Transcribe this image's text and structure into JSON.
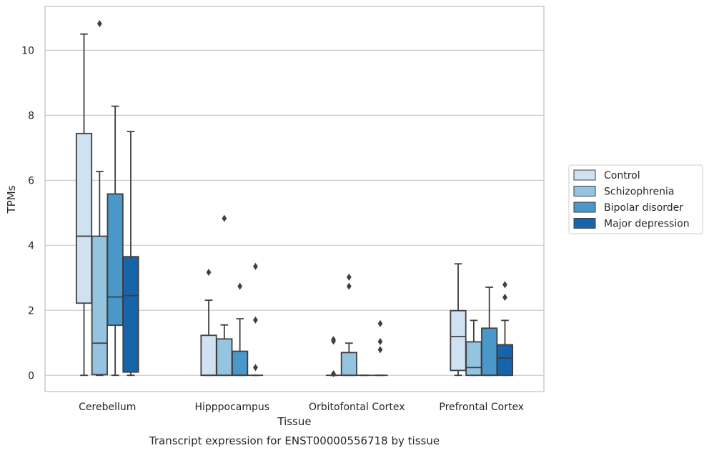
{
  "caption": "Transcript expression for ENST00000556718 by tissue",
  "chart_data": {
    "type": "box",
    "xlabel": "Tissue",
    "ylabel": "TPMs",
    "ylim": [
      -0.5,
      11.35
    ],
    "yticks": [
      0,
      2,
      4,
      6,
      8,
      10
    ],
    "grid": "horizontal",
    "legend_position": "right",
    "categories": [
      "Cerebellum",
      "Hipppocampus",
      "Orbitofontal Cortex",
      "Prefrontal Cortex"
    ],
    "series": [
      {
        "name": "Control",
        "color": "#d0e1f2",
        "boxes": [
          {
            "whislo": 0,
            "q1": 2.22,
            "med": 4.28,
            "q3": 7.44,
            "whishi": 10.5,
            "fliers": []
          },
          {
            "whislo": 0,
            "q1": 0,
            "med": 0,
            "q3": 1.23,
            "whishi": 2.31,
            "fliers": [
              3.17
            ]
          },
          {
            "whislo": 0,
            "q1": 0,
            "med": 0,
            "q3": 0,
            "whishi": 0,
            "fliers": [
              0.05,
              1.05,
              1.1
            ]
          },
          {
            "whislo": 0,
            "q1": 0.15,
            "med": 1.19,
            "q3": 1.99,
            "whishi": 3.43,
            "fliers": []
          }
        ]
      },
      {
        "name": "Schizophrenia",
        "color": "#94c4df",
        "boxes": [
          {
            "whislo": 0,
            "q1": 0.02,
            "med": 0.99,
            "q3": 4.28,
            "whishi": 6.27,
            "fliers": [
              10.82
            ]
          },
          {
            "whislo": 0,
            "q1": 0,
            "med": 0,
            "q3": 1.12,
            "whishi": 1.55,
            "fliers": [
              4.83
            ]
          },
          {
            "whislo": 0,
            "q1": 0,
            "med": 0,
            "q3": 0.7,
            "whishi": 0.99,
            "fliers": [
              2.74,
              3.02
            ]
          },
          {
            "whislo": 0,
            "q1": 0,
            "med": 0.24,
            "q3": 1.03,
            "whishi": 1.69,
            "fliers": []
          }
        ]
      },
      {
        "name": "Bipolar disorder",
        "color": "#4a98c9",
        "boxes": [
          {
            "whislo": 0,
            "q1": 1.54,
            "med": 2.41,
            "q3": 5.58,
            "whishi": 8.28,
            "fliers": []
          },
          {
            "whislo": 0,
            "q1": 0,
            "med": 0,
            "q3": 0.74,
            "whishi": 1.74,
            "fliers": [
              2.74
            ]
          },
          {
            "whislo": 0,
            "q1": 0,
            "med": 0,
            "q3": 0,
            "whishi": 0,
            "fliers": []
          },
          {
            "whislo": 0,
            "q1": 0,
            "med": 0,
            "q3": 1.45,
            "whishi": 2.71,
            "fliers": []
          }
        ]
      },
      {
        "name": "Major depression",
        "color": "#1764ab",
        "boxes": [
          {
            "whislo": 0,
            "q1": 0.1,
            "med": 2.45,
            "q3": 3.65,
            "whishi": 7.5,
            "fliers": []
          },
          {
            "whislo": 0,
            "q1": 0,
            "med": 0,
            "q3": 0,
            "whishi": 0,
            "fliers": [
              0.24,
              1.7,
              3.35
            ]
          },
          {
            "whislo": 0,
            "q1": 0,
            "med": 0,
            "q3": 0,
            "whishi": 0,
            "fliers": [
              0.79,
              1.04,
              1.59
            ]
          },
          {
            "whislo": 0,
            "q1": 0,
            "med": 0.53,
            "q3": 0.94,
            "whishi": 1.69,
            "fliers": [
              2.4,
              2.79
            ]
          }
        ]
      }
    ]
  }
}
